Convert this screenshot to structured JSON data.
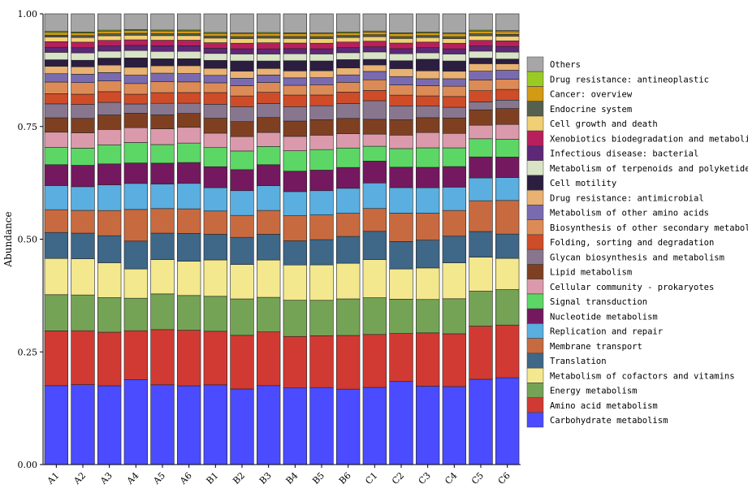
{
  "chart_data": {
    "type": "bar",
    "stacked": true,
    "ylabel": "Abundance",
    "xlabel": "",
    "ylim": [
      0,
      1
    ],
    "yticks": [
      "0.00",
      "0.25",
      "0.50",
      "0.75",
      "1.00"
    ],
    "grid": false,
    "legend_position": "right",
    "categories": [
      "A1",
      "A2",
      "A3",
      "A4",
      "A5",
      "A6",
      "B1",
      "B2",
      "B3",
      "B4",
      "B5",
      "B6",
      "C1",
      "C2",
      "C3",
      "C4",
      "C5",
      "C6"
    ],
    "series": [
      {
        "name": "Carbohydrate metabolism",
        "color": "#4B4BFF",
        "values": [
          0.17,
          0.172,
          0.169,
          0.183,
          0.172,
          0.17,
          0.171,
          0.162,
          0.169,
          0.165,
          0.165,
          0.163,
          0.166,
          0.179,
          0.169,
          0.167,
          0.183,
          0.186
        ]
      },
      {
        "name": "Amino acid metabolism",
        "color": "#D13A33",
        "values": [
          0.118,
          0.116,
          0.115,
          0.105,
          0.119,
          0.12,
          0.115,
          0.115,
          0.115,
          0.111,
          0.111,
          0.116,
          0.114,
          0.103,
          0.115,
          0.113,
          0.114,
          0.113
        ]
      },
      {
        "name": "Energy metabolism",
        "color": "#74A356",
        "values": [
          0.078,
          0.077,
          0.074,
          0.07,
          0.077,
          0.075,
          0.075,
          0.078,
          0.074,
          0.078,
          0.076,
          0.079,
          0.079,
          0.074,
          0.072,
          0.075,
          0.075,
          0.076
        ]
      },
      {
        "name": "Metabolism of cofactors and vitamins",
        "color": "#F3E88D",
        "values": [
          0.078,
          0.078,
          0.075,
          0.063,
          0.074,
          0.074,
          0.078,
          0.074,
          0.08,
          0.076,
          0.076,
          0.077,
          0.082,
          0.065,
          0.068,
          0.077,
          0.073,
          0.067
        ]
      },
      {
        "name": "Translation",
        "color": "#3E6788",
        "values": [
          0.056,
          0.055,
          0.058,
          0.06,
          0.057,
          0.06,
          0.055,
          0.058,
          0.055,
          0.052,
          0.054,
          0.058,
          0.061,
          0.059,
          0.06,
          0.057,
          0.055,
          0.052
        ]
      },
      {
        "name": "Membrane transport",
        "color": "#C86A3F",
        "values": [
          0.049,
          0.049,
          0.054,
          0.068,
          0.053,
          0.053,
          0.05,
          0.047,
          0.051,
          0.054,
          0.053,
          0.05,
          0.049,
          0.061,
          0.058,
          0.055,
          0.066,
          0.072
        ]
      },
      {
        "name": "Replication and repair",
        "color": "#5AAEE0",
        "values": [
          0.052,
          0.051,
          0.055,
          0.056,
          0.053,
          0.055,
          0.05,
          0.053,
          0.053,
          0.052,
          0.052,
          0.054,
          0.055,
          0.055,
          0.055,
          0.05,
          0.049,
          0.049
        ]
      },
      {
        "name": "Nucleotide metabolism",
        "color": "#74195F",
        "values": [
          0.045,
          0.046,
          0.045,
          0.044,
          0.045,
          0.045,
          0.045,
          0.045,
          0.045,
          0.044,
          0.044,
          0.045,
          0.047,
          0.044,
          0.044,
          0.044,
          0.045,
          0.044
        ]
      },
      {
        "name": "Signal transduction",
        "color": "#5CD765",
        "values": [
          0.037,
          0.037,
          0.041,
          0.044,
          0.04,
          0.042,
          0.041,
          0.04,
          0.039,
          0.044,
          0.044,
          0.042,
          0.032,
          0.04,
          0.042,
          0.04,
          0.039,
          0.038
        ]
      },
      {
        "name": "Cellular community - prokaryotes",
        "color": "#DB9AAC",
        "values": [
          0.033,
          0.033,
          0.033,
          0.032,
          0.034,
          0.034,
          0.031,
          0.031,
          0.03,
          0.031,
          0.031,
          0.031,
          0.026,
          0.029,
          0.033,
          0.031,
          0.029,
          0.032
        ]
      },
      {
        "name": "Lipid metabolism",
        "color": "#7F4022",
        "values": [
          0.031,
          0.031,
          0.031,
          0.031,
          0.03,
          0.03,
          0.032,
          0.032,
          0.032,
          0.033,
          0.033,
          0.033,
          0.032,
          0.033,
          0.032,
          0.033,
          0.033,
          0.034
        ]
      },
      {
        "name": "Glycan biosynthesis and metabolism",
        "color": "#88768F",
        "values": [
          0.03,
          0.03,
          0.027,
          0.02,
          0.025,
          0.022,
          0.03,
          0.032,
          0.03,
          0.031,
          0.03,
          0.032,
          0.04,
          0.03,
          0.025,
          0.023,
          0.017,
          0.018
        ]
      },
      {
        "name": "Folding, sorting and degradation",
        "color": "#CF4C29",
        "values": [
          0.022,
          0.022,
          0.023,
          0.021,
          0.023,
          0.023,
          0.025,
          0.023,
          0.024,
          0.025,
          0.023,
          0.025,
          0.022,
          0.023,
          0.022,
          0.023,
          0.024,
          0.023
        ]
      },
      {
        "name": "Biosynthesis of other secondary metabolites",
        "color": "#DD8B56",
        "values": [
          0.025,
          0.025,
          0.023,
          0.023,
          0.024,
          0.023,
          0.021,
          0.022,
          0.021,
          0.021,
          0.022,
          0.021,
          0.023,
          0.022,
          0.022,
          0.022,
          0.023,
          0.022
        ]
      },
      {
        "name": "Metabolism of other amino acids",
        "color": "#7A6BB0",
        "values": [
          0.018,
          0.018,
          0.018,
          0.018,
          0.018,
          0.018,
          0.016,
          0.016,
          0.016,
          0.016,
          0.015,
          0.016,
          0.018,
          0.018,
          0.015,
          0.016,
          0.019,
          0.019
        ]
      },
      {
        "name": "Drug resistance: antimicrobial",
        "color": "#E9B172",
        "values": [
          0.016,
          0.016,
          0.016,
          0.017,
          0.016,
          0.017,
          0.015,
          0.015,
          0.014,
          0.015,
          0.015,
          0.015,
          0.014,
          0.017,
          0.017,
          0.016,
          0.016,
          0.014
        ]
      },
      {
        "name": "Cell motility",
        "color": "#2B1E40",
        "values": [
          0.014,
          0.014,
          0.015,
          0.02,
          0.015,
          0.015,
          0.017,
          0.022,
          0.016,
          0.022,
          0.021,
          0.018,
          0.012,
          0.017,
          0.025,
          0.022,
          0.012,
          0.01
        ]
      },
      {
        "name": "Metabolism of terpenoids and polyketides",
        "color": "#D9E4C7",
        "values": [
          0.016,
          0.016,
          0.015,
          0.016,
          0.016,
          0.016,
          0.015,
          0.015,
          0.015,
          0.015,
          0.015,
          0.015,
          0.016,
          0.015,
          0.014,
          0.015,
          0.015,
          0.015
        ]
      },
      {
        "name": "Infectious disease: bacterial",
        "color": "#5D2877",
        "values": [
          0.011,
          0.011,
          0.011,
          0.011,
          0.012,
          0.012,
          0.011,
          0.011,
          0.011,
          0.011,
          0.011,
          0.011,
          0.011,
          0.011,
          0.011,
          0.011,
          0.011,
          0.012
        ]
      },
      {
        "name": "Xenobiotics biodegradation and metabolism",
        "color": "#B8205D",
        "values": [
          0.012,
          0.012,
          0.012,
          0.012,
          0.012,
          0.012,
          0.012,
          0.012,
          0.013,
          0.012,
          0.012,
          0.012,
          0.012,
          0.012,
          0.012,
          0.012,
          0.012,
          0.012
        ]
      },
      {
        "name": "Cell growth and death",
        "color": "#F1CF75",
        "values": [
          0.01,
          0.01,
          0.01,
          0.01,
          0.01,
          0.01,
          0.01,
          0.01,
          0.01,
          0.01,
          0.01,
          0.01,
          0.01,
          0.01,
          0.01,
          0.01,
          0.01,
          0.01
        ]
      },
      {
        "name": "Endocrine system",
        "color": "#55604F",
        "values": [
          0.004,
          0.004,
          0.004,
          0.004,
          0.004,
          0.004,
          0.004,
          0.004,
          0.004,
          0.004,
          0.004,
          0.004,
          0.004,
          0.004,
          0.004,
          0.004,
          0.004,
          0.004
        ]
      },
      {
        "name": "Cancer: overview",
        "color": "#D39A14",
        "values": [
          0.006,
          0.006,
          0.006,
          0.006,
          0.006,
          0.006,
          0.006,
          0.006,
          0.006,
          0.006,
          0.006,
          0.006,
          0.006,
          0.006,
          0.006,
          0.006,
          0.006,
          0.006
        ]
      },
      {
        "name": "Drug resistance: antineoplastic",
        "color": "#9ACB25",
        "values": [
          0.002,
          0.002,
          0.002,
          0.002,
          0.002,
          0.002,
          0.002,
          0.002,
          0.002,
          0.002,
          0.002,
          0.002,
          0.002,
          0.002,
          0.002,
          0.002,
          0.002,
          0.002
        ]
      },
      {
        "name": "Others",
        "color": "#A6A6A6",
        "values": [
          0.038,
          0.039,
          0.035,
          0.034,
          0.035,
          0.035,
          0.04,
          0.041,
          0.04,
          0.041,
          0.041,
          0.039,
          0.037,
          0.041,
          0.039,
          0.041,
          0.035,
          0.036
        ]
      }
    ]
  }
}
